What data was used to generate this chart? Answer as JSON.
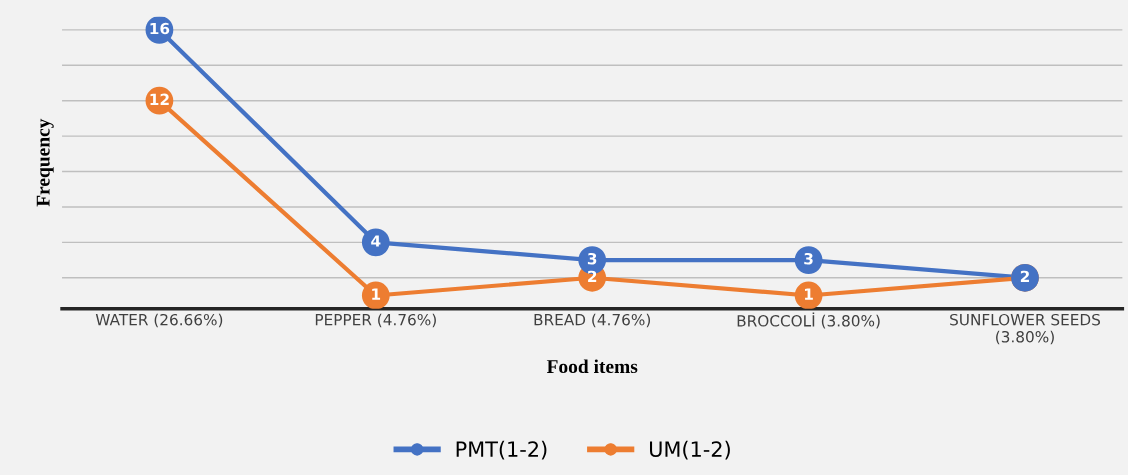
{
  "chart_data": {
    "type": "line",
    "xlabel": "Food items",
    "ylabel": "Frequency",
    "categories": [
      "WATER (26.66%)",
      "PEPPER (4.76%)",
      "BREAD (4.76%)",
      "BROCCOLİ (3.80%)",
      "SUNFLOWER SEEDS\n(3.80%)"
    ],
    "series": [
      {
        "name": "PMT(1-2)",
        "color": "#4472c4",
        "values": [
          16,
          4,
          3,
          3,
          2
        ],
        "value_labels": [
          "16",
          "4",
          "3",
          "3",
          null
        ]
      },
      {
        "name": "UM(1-2)",
        "color": "#ed7d31",
        "values": [
          12,
          1,
          2,
          1,
          2
        ],
        "value_labels": [
          "12",
          "1",
          "2",
          "1",
          "2"
        ]
      }
    ],
    "tick_labels": "x",
    "grid": "y",
    "legend": "bottom",
    "marker": "circle",
    "line_style": "solid"
  }
}
